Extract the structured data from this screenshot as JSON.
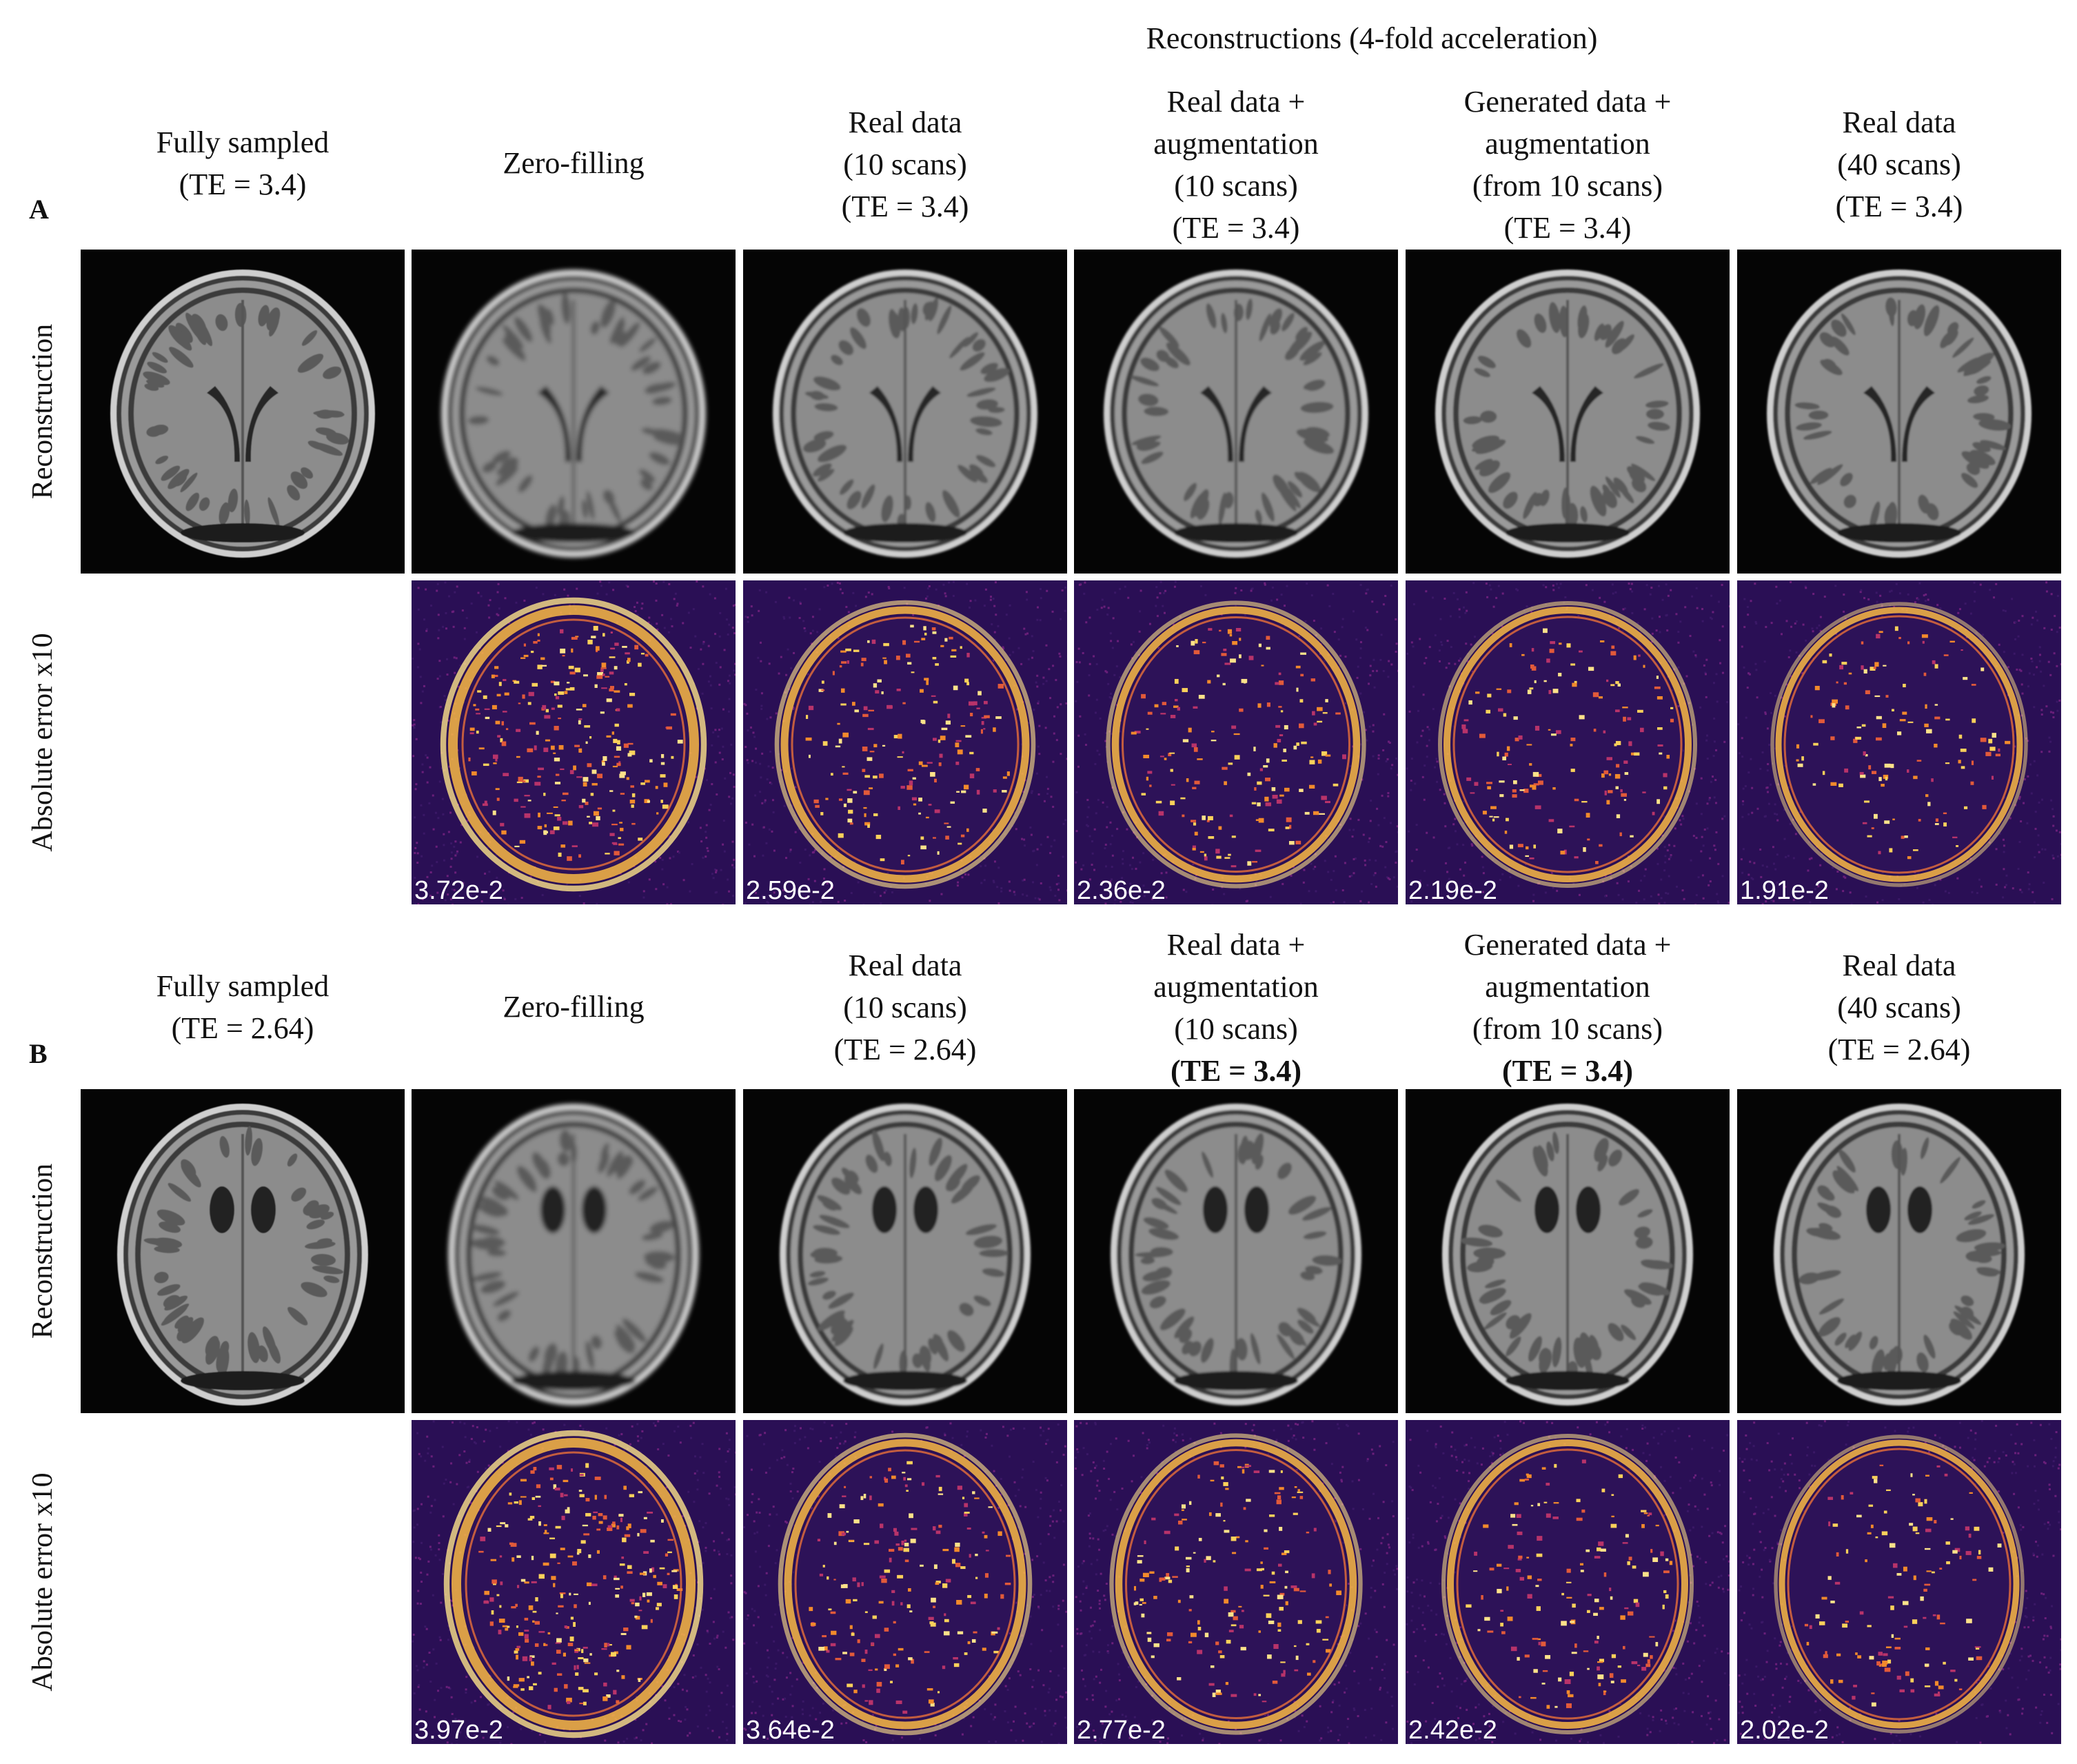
{
  "figure_title": "Reconstructions (4-fold acceleration)",
  "row_labels": {
    "recon": "Reconstruction",
    "error": "Absolute error x10"
  },
  "panels": [
    {
      "letter": "A",
      "headers": [
        {
          "lines": [
            "Fully sampled",
            "(TE = 3.4)"
          ],
          "bold": [
            false,
            false
          ]
        },
        {
          "lines": [
            "Zero-filling"
          ],
          "bold": [
            false
          ]
        },
        {
          "lines": [
            "Real data",
            "(10 scans)",
            "(TE = 3.4)"
          ],
          "bold": [
            false,
            false,
            false
          ]
        },
        {
          "lines": [
            "Real data +",
            "augmentation",
            "(10 scans)",
            "(TE = 3.4)"
          ],
          "bold": [
            false,
            false,
            false,
            false
          ]
        },
        {
          "lines": [
            "Generated data +",
            "augmentation",
            "(from 10 scans)",
            "(TE = 3.4)"
          ],
          "bold": [
            false,
            false,
            false,
            false
          ]
        },
        {
          "lines": [
            "Real data",
            "(40 scans)",
            "(TE = 3.4)"
          ],
          "bold": [
            false,
            false,
            false
          ]
        }
      ],
      "error_values": [
        "",
        "3.72e-2",
        "2.59e-2",
        "2.36e-2",
        "2.19e-2",
        "1.91e-2"
      ]
    },
    {
      "letter": "B",
      "headers": [
        {
          "lines": [
            "Fully sampled",
            "(TE = 2.64)"
          ],
          "bold": [
            false,
            false
          ]
        },
        {
          "lines": [
            "Zero-filling"
          ],
          "bold": [
            false
          ]
        },
        {
          "lines": [
            "Real data",
            "(10 scans)",
            "(TE = 2.64)"
          ],
          "bold": [
            false,
            false,
            false
          ]
        },
        {
          "lines": [
            "Real data +",
            "augmentation",
            "(10 scans)",
            "(TE = 3.4)"
          ],
          "bold": [
            false,
            false,
            false,
            true
          ]
        },
        {
          "lines": [
            "Generated data +",
            "augmentation",
            "(from 10 scans)",
            "(TE = 3.4)"
          ],
          "bold": [
            false,
            false,
            false,
            true
          ]
        },
        {
          "lines": [
            "Real data",
            "(40 scans)",
            "(TE = 2.64)"
          ],
          "bold": [
            false,
            false,
            false
          ]
        }
      ],
      "error_values": [
        "",
        "3.97e-2",
        "3.64e-2",
        "2.77e-2",
        "2.42e-2",
        "2.02e-2"
      ]
    }
  ],
  "colors": {
    "mri_background": "#050505",
    "error_background": "#2a0f55",
    "error_hot": "#fde28a"
  }
}
